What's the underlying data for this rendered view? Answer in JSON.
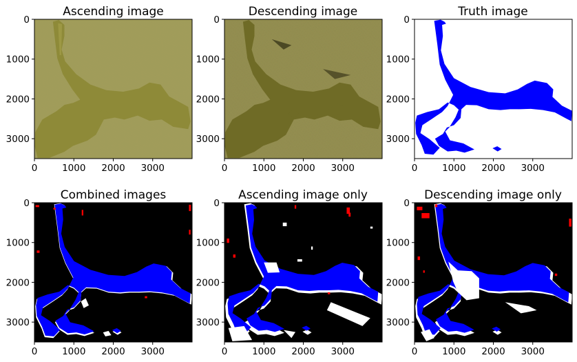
{
  "figure": {
    "panels": [
      {
        "title": "Ascending image"
      },
      {
        "title": "Descending image"
      },
      {
        "title": "Truth image"
      },
      {
        "title": "Combined images"
      },
      {
        "title": "Ascending image only"
      },
      {
        "title": "Descending image only"
      }
    ]
  },
  "chart_data": [
    {
      "type": "image",
      "title": "Ascending image",
      "image_content": "satellite image of river valley, yellow-olive tones",
      "xticks": [
        0,
        1000,
        2000,
        3000
      ],
      "yticks": [
        0,
        1000,
        2000,
        3000
      ],
      "xlim": [
        0,
        4000
      ],
      "ylim": [
        3500,
        0
      ]
    },
    {
      "type": "image",
      "title": "Descending image",
      "image_content": "satellite image of river valley, darker olive tones",
      "xticks": [
        0,
        1000,
        2000,
        3000
      ],
      "yticks": [
        0,
        1000,
        2000,
        3000
      ],
      "xlim": [
        0,
        4000
      ],
      "ylim": [
        3500,
        0
      ]
    },
    {
      "type": "image",
      "title": "Truth image",
      "image_content": "flooded area mask",
      "colors": {
        "water": "#0000ff",
        "background": "#ffffff"
      },
      "xticks": [
        0,
        1000,
        2000,
        3000
      ],
      "yticks": [
        0,
        1000,
        2000,
        3000
      ],
      "xlim": [
        0,
        4000
      ],
      "ylim": [
        3500,
        0
      ]
    },
    {
      "type": "image",
      "title": "Combined images",
      "image_content": "classification comparison map",
      "colors": {
        "true_positive": "#0000ff",
        "false_negative": "#ffffff",
        "false_positive": "#ff0000",
        "true_negative": "#000000"
      },
      "xticks": [
        0,
        1000,
        2000,
        3000
      ],
      "yticks": [
        0,
        1000,
        2000,
        3000
      ],
      "xlim": [
        0,
        4000
      ],
      "ylim": [
        3500,
        0
      ]
    },
    {
      "type": "image",
      "title": "Ascending image only",
      "image_content": "classification comparison map",
      "colors": {
        "true_positive": "#0000ff",
        "false_negative": "#ffffff",
        "false_positive": "#ff0000",
        "true_negative": "#000000"
      },
      "xticks": [
        0,
        1000,
        2000,
        3000
      ],
      "yticks": [
        0,
        1000,
        2000,
        3000
      ],
      "xlim": [
        0,
        4000
      ],
      "ylim": [
        3500,
        0
      ]
    },
    {
      "type": "image",
      "title": "Descending image only",
      "image_content": "classification comparison map",
      "colors": {
        "true_positive": "#0000ff",
        "false_negative": "#ffffff",
        "false_positive": "#ff0000",
        "true_negative": "#000000"
      },
      "xticks": [
        0,
        1000,
        2000,
        3000
      ],
      "yticks": [
        0,
        1000,
        2000,
        3000
      ],
      "xlim": [
        0,
        4000
      ],
      "ylim": [
        3500,
        0
      ]
    }
  ]
}
